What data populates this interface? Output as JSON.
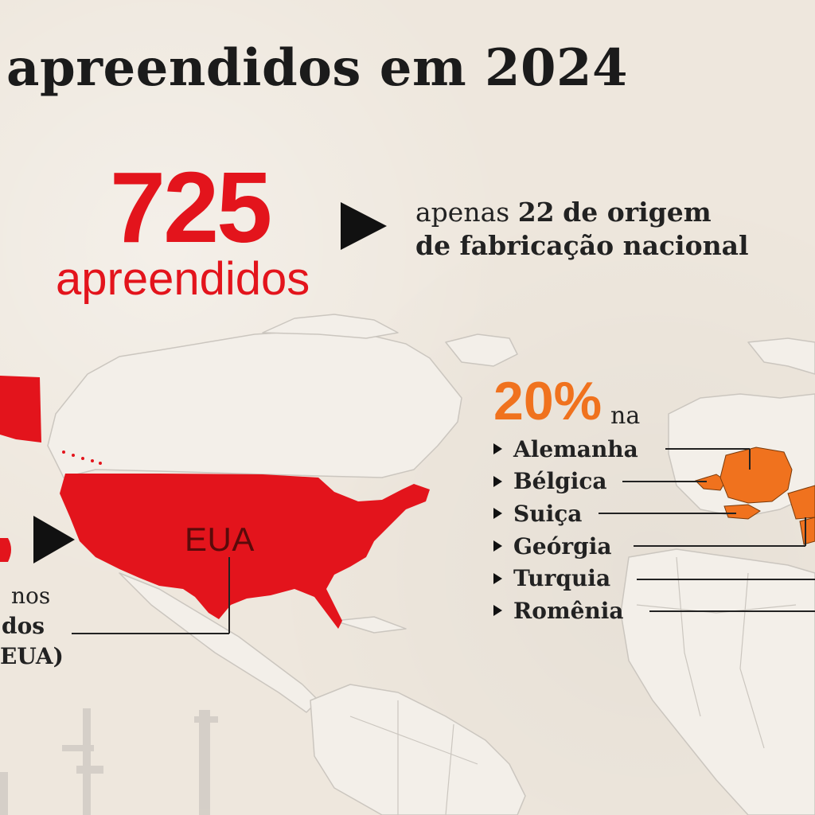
{
  "title": "apreendidos em 2024",
  "total": {
    "value": "725",
    "label": "apreendidos"
  },
  "national": {
    "prefix": "apenas",
    "count": "22",
    "text_line1": "de origem",
    "text_line2": "de fabricação nacional"
  },
  "usa": {
    "map_label": "EUA",
    "text_lines": [
      "nos",
      "dos",
      "EUA)"
    ]
  },
  "europe": {
    "percent": "20%",
    "suffix": "na",
    "countries": [
      "Alemanha",
      "Bélgica",
      "Suiça",
      "Geórgia",
      "Turquia",
      "Romênia"
    ]
  },
  "colors": {
    "red": "#e3141c",
    "orange": "#f0721e",
    "map_outline": "#c9c4bd",
    "land": "#f4f1ec",
    "text": "#1b1b1b"
  },
  "icons": [
    "right-triangle-arrow-icon",
    "rifle-silhouette-icon"
  ]
}
